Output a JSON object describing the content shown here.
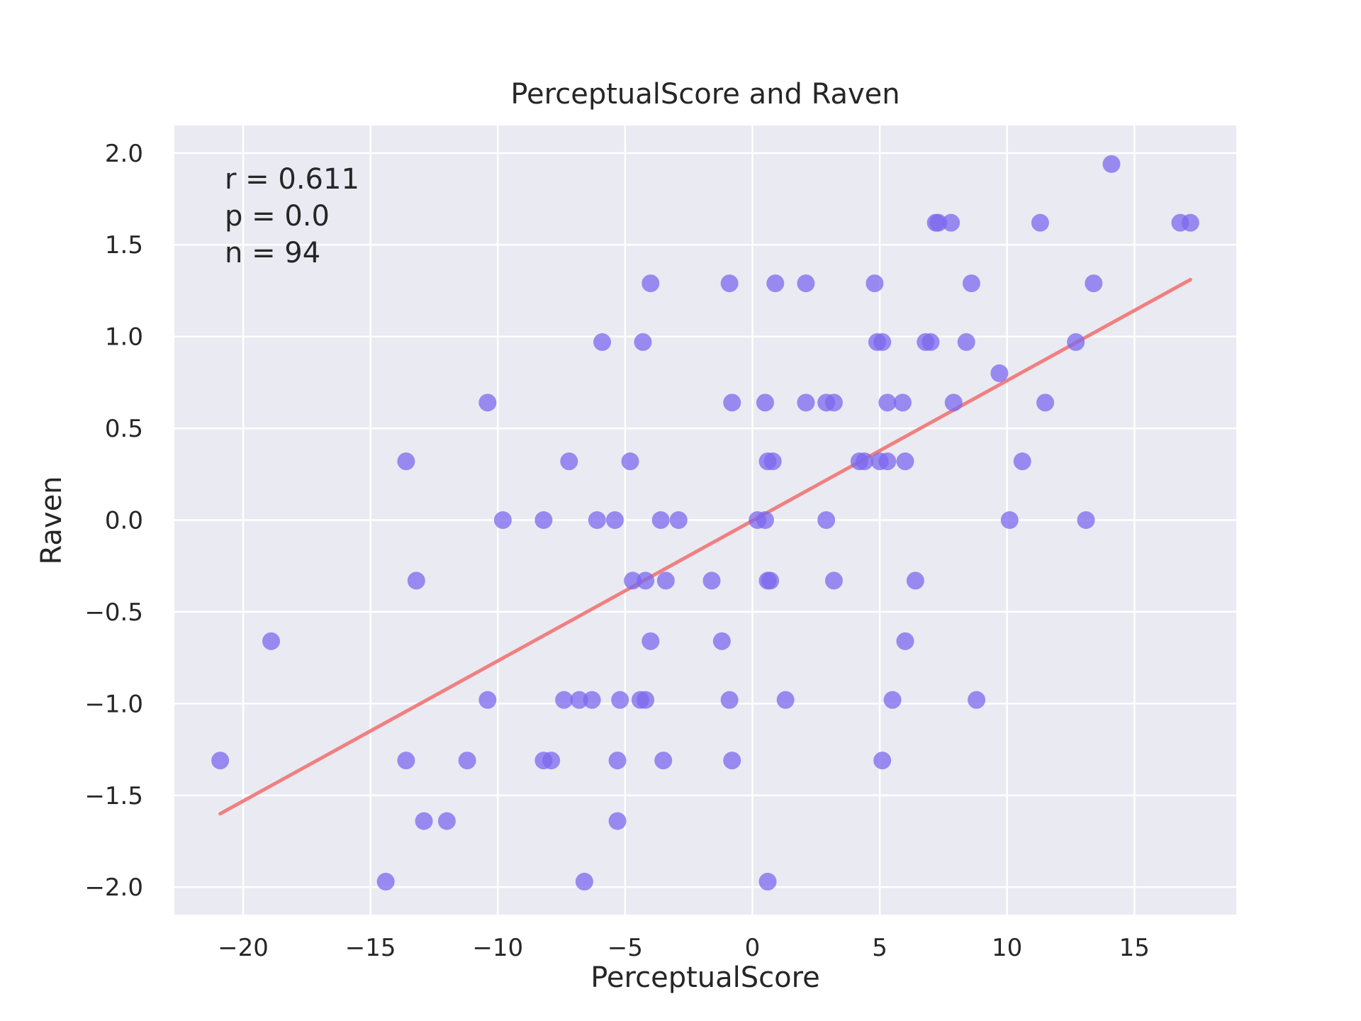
{
  "chart_data": {
    "type": "scatter",
    "title": "PerceptualScore and Raven",
    "xlabel": "PerceptualScore",
    "ylabel": "Raven",
    "xlim": [
      -22.7,
      19
    ],
    "ylim": [
      -2.15,
      2.15
    ],
    "xticks": [
      -20,
      -15,
      -10,
      -5,
      0,
      5,
      10,
      15
    ],
    "xtick_labels": [
      "−20",
      "−15",
      "−10",
      "−5",
      "0",
      "5",
      "10",
      "15"
    ],
    "yticks": [
      2.0,
      1.5,
      1.0,
      0.5,
      0.0,
      -0.5,
      -1.0,
      -1.5,
      -2.0
    ],
    "ytick_labels": [
      "2.0",
      "1.5",
      "1.0",
      "0.5",
      "0.0",
      "−0.5",
      "−1.0",
      "−1.5",
      "−2.0"
    ],
    "grid": true,
    "colors": {
      "background": "#eaeaf2",
      "points": "#7b68ee",
      "fit_line": "#f08080"
    },
    "stats": {
      "r": "r = 0.611",
      "p": "p = 0.0",
      "n": "n = 94"
    },
    "fit_line": {
      "x": [
        -20.9,
        17.2
      ],
      "y": [
        -1.6,
        1.31
      ]
    },
    "points": [
      [
        -20.9,
        -1.31
      ],
      [
        -18.9,
        -0.66
      ],
      [
        -14.4,
        -1.97
      ],
      [
        -13.6,
        0.32
      ],
      [
        -13.6,
        -1.31
      ],
      [
        -13.2,
        -0.33
      ],
      [
        -12.9,
        -1.64
      ],
      [
        -12.0,
        -1.64
      ],
      [
        -11.2,
        -1.31
      ],
      [
        -10.4,
        0.64
      ],
      [
        -10.4,
        -0.98
      ],
      [
        -9.8,
        0.0
      ],
      [
        -8.2,
        0.0
      ],
      [
        -8.2,
        -1.31
      ],
      [
        -7.9,
        -1.31
      ],
      [
        -7.4,
        -0.98
      ],
      [
        -7.2,
        0.32
      ],
      [
        -6.8,
        -0.98
      ],
      [
        -6.6,
        -1.97
      ],
      [
        -6.3,
        -0.98
      ],
      [
        -6.1,
        0.0
      ],
      [
        -5.9,
        0.97
      ],
      [
        -5.4,
        0.0
      ],
      [
        -5.3,
        -1.31
      ],
      [
        -5.3,
        -1.64
      ],
      [
        -5.2,
        -0.98
      ],
      [
        -4.8,
        0.32
      ],
      [
        -4.7,
        -0.33
      ],
      [
        -4.4,
        -0.98
      ],
      [
        -4.3,
        0.97
      ],
      [
        -4.2,
        -0.33
      ],
      [
        -4.2,
        -0.98
      ],
      [
        -4.0,
        1.29
      ],
      [
        -4.0,
        -0.66
      ],
      [
        -3.6,
        0.0
      ],
      [
        -3.5,
        -1.31
      ],
      [
        -3.4,
        -0.33
      ],
      [
        -2.9,
        0.0
      ],
      [
        -1.6,
        -0.33
      ],
      [
        -1.2,
        -0.66
      ],
      [
        -0.9,
        -0.98
      ],
      [
        -0.9,
        1.29
      ],
      [
        -0.8,
        0.64
      ],
      [
        -0.8,
        -1.31
      ],
      [
        0.2,
        0.0
      ],
      [
        0.5,
        0.64
      ],
      [
        0.5,
        0.0
      ],
      [
        0.6,
        -1.97
      ],
      [
        0.6,
        0.32
      ],
      [
        0.6,
        -0.33
      ],
      [
        0.7,
        -0.33
      ],
      [
        0.8,
        0.32
      ],
      [
        0.9,
        1.29
      ],
      [
        1.3,
        -0.98
      ],
      [
        2.1,
        1.29
      ],
      [
        2.1,
        0.64
      ],
      [
        2.9,
        0.0
      ],
      [
        2.9,
        0.64
      ],
      [
        3.2,
        0.64
      ],
      [
        3.2,
        -0.33
      ],
      [
        4.2,
        0.32
      ],
      [
        4.4,
        0.32
      ],
      [
        4.8,
        1.29
      ],
      [
        4.9,
        0.97
      ],
      [
        5.0,
        0.32
      ],
      [
        5.1,
        0.97
      ],
      [
        5.1,
        -1.31
      ],
      [
        5.3,
        0.64
      ],
      [
        5.3,
        0.32
      ],
      [
        5.5,
        -0.98
      ],
      [
        5.9,
        0.64
      ],
      [
        6.0,
        0.32
      ],
      [
        6.0,
        -0.66
      ],
      [
        6.4,
        -0.33
      ],
      [
        6.8,
        0.97
      ],
      [
        7.0,
        0.97
      ],
      [
        7.2,
        1.62
      ],
      [
        7.3,
        1.62
      ],
      [
        7.8,
        1.62
      ],
      [
        7.9,
        0.64
      ],
      [
        8.4,
        0.97
      ],
      [
        8.6,
        1.29
      ],
      [
        8.8,
        -0.98
      ],
      [
        9.7,
        0.8
      ],
      [
        10.1,
        0.0
      ],
      [
        10.6,
        0.32
      ],
      [
        11.3,
        1.62
      ],
      [
        11.5,
        0.64
      ],
      [
        12.7,
        0.97
      ],
      [
        13.1,
        0.0
      ],
      [
        13.4,
        1.29
      ],
      [
        14.1,
        1.94
      ],
      [
        16.8,
        1.62
      ],
      [
        17.2,
        1.62
      ]
    ]
  }
}
